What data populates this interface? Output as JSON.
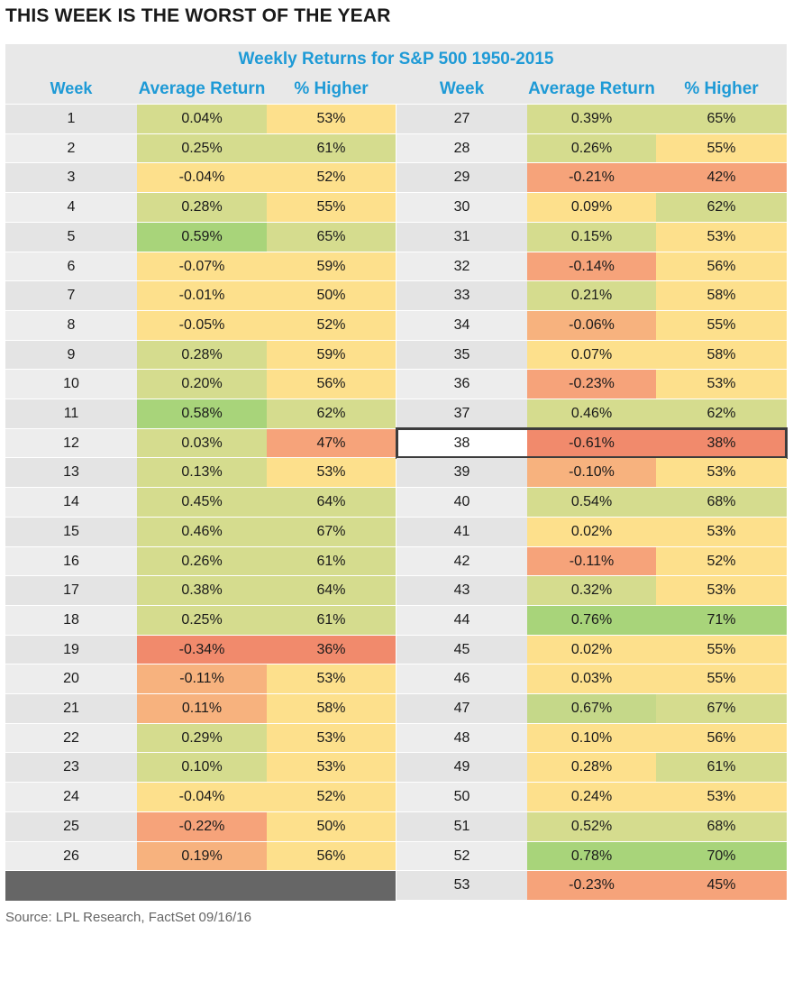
{
  "title": "THIS WEEK IS THE WORST OF THE YEAR",
  "subtitle": "Weekly Returns for S&P 500 1950-2015",
  "headers": {
    "week": "Week",
    "avg": "Average Return",
    "higher": "% Higher"
  },
  "source": "Source: LPL Research, FactSet   09/16/16",
  "highlight_week": "38",
  "colors": {
    "header_text": "#1e9ad6",
    "week_bg": "#e8e8e8",
    "scale_red": "#f18a6c",
    "scale_orange": "#f7b27e",
    "scale_yellow": "#fde08c",
    "scale_olive": "#d5dc8e",
    "scale_green": "#a8d47a",
    "empty_block": "#666666",
    "highlight_border": "#3c3c3c"
  },
  "chart_data": {
    "type": "table",
    "title": "THIS WEEK IS THE WORST OF THE YEAR",
    "subtitle": "Weekly Returns for S&P 500 1950-2015",
    "columns": [
      "Week",
      "Average Return",
      "% Higher"
    ],
    "rows": [
      [
        "1",
        "0.04%",
        "53%"
      ],
      [
        "2",
        "0.25%",
        "61%"
      ],
      [
        "3",
        "-0.04%",
        "52%"
      ],
      [
        "4",
        "0.28%",
        "55%"
      ],
      [
        "5",
        "0.59%",
        "65%"
      ],
      [
        "6",
        "-0.07%",
        "59%"
      ],
      [
        "7",
        "-0.01%",
        "50%"
      ],
      [
        "8",
        "-0.05%",
        "52%"
      ],
      [
        "9",
        "0.28%",
        "59%"
      ],
      [
        "10",
        "0.20%",
        "56%"
      ],
      [
        "11",
        "0.58%",
        "62%"
      ],
      [
        "12",
        "0.03%",
        "47%"
      ],
      [
        "13",
        "0.13%",
        "53%"
      ],
      [
        "14",
        "0.45%",
        "64%"
      ],
      [
        "15",
        "0.46%",
        "67%"
      ],
      [
        "16",
        "0.26%",
        "61%"
      ],
      [
        "17",
        "0.38%",
        "64%"
      ],
      [
        "18",
        "0.25%",
        "61%"
      ],
      [
        "19",
        "-0.34%",
        "36%"
      ],
      [
        "20",
        "-0.11%",
        "53%"
      ],
      [
        "21",
        "0.11%",
        "58%"
      ],
      [
        "22",
        "0.29%",
        "53%"
      ],
      [
        "23",
        "0.10%",
        "53%"
      ],
      [
        "24",
        "-0.04%",
        "52%"
      ],
      [
        "25",
        "-0.22%",
        "50%"
      ],
      [
        "26",
        "0.19%",
        "56%"
      ],
      [
        "27",
        "0.39%",
        "65%"
      ],
      [
        "28",
        "0.26%",
        "55%"
      ],
      [
        "29",
        "-0.21%",
        "42%"
      ],
      [
        "30",
        "0.09%",
        "62%"
      ],
      [
        "31",
        "0.15%",
        "53%"
      ],
      [
        "32",
        "-0.14%",
        "56%"
      ],
      [
        "33",
        "0.21%",
        "58%"
      ],
      [
        "34",
        "-0.06%",
        "55%"
      ],
      [
        "35",
        "0.07%",
        "58%"
      ],
      [
        "36",
        "-0.23%",
        "53%"
      ],
      [
        "37",
        "0.46%",
        "62%"
      ],
      [
        "38",
        "-0.61%",
        "38%"
      ],
      [
        "39",
        "-0.10%",
        "53%"
      ],
      [
        "40",
        "0.54%",
        "68%"
      ],
      [
        "41",
        "0.02%",
        "53%"
      ],
      [
        "42",
        "-0.11%",
        "52%"
      ],
      [
        "43",
        "0.32%",
        "53%"
      ],
      [
        "44",
        "0.76%",
        "71%"
      ],
      [
        "45",
        "0.02%",
        "55%"
      ],
      [
        "46",
        "0.03%",
        "55%"
      ],
      [
        "47",
        "0.67%",
        "67%"
      ],
      [
        "48",
        "0.10%",
        "56%"
      ],
      [
        "49",
        "0.28%",
        "61%"
      ],
      [
        "50",
        "0.24%",
        "53%"
      ],
      [
        "51",
        "0.52%",
        "68%"
      ],
      [
        "52",
        "0.78%",
        "70%"
      ],
      [
        "53",
        "-0.23%",
        "45%"
      ]
    ],
    "cell_colors": {
      "avg": [
        "olive",
        "olive",
        "yellow",
        "olive",
        "green",
        "yellow",
        "yellow",
        "yellow",
        "olive",
        "olive",
        "green",
        "olive",
        "olive",
        "olive",
        "olive",
        "olive",
        "olive",
        "olive",
        "red",
        "orange",
        "orange",
        "olive",
        "olive",
        "yellow",
        "red2",
        "orange",
        "olive",
        "olive",
        "red2",
        "yellow",
        "olive",
        "red2",
        "olive",
        "orange",
        "yellow",
        "red2",
        "olive",
        "red",
        "orange",
        "olive",
        "yellow",
        "red2",
        "olive",
        "green",
        "yellow",
        "yellow",
        "olive2",
        "yellow",
        "yellow",
        "yellow",
        "olive",
        "green",
        "red2"
      ],
      "higher": [
        "yellow",
        "olive",
        "yellow",
        "yellow",
        "olive",
        "yellow",
        "yellow",
        "yellow",
        "yellow",
        "yellow",
        "olive",
        "red2",
        "yellow",
        "olive",
        "olive",
        "olive",
        "olive",
        "olive",
        "red",
        "yellow",
        "yellow",
        "yellow",
        "yellow",
        "yellow",
        "yellow",
        "yellow",
        "olive",
        "yellow",
        "red2",
        "olive",
        "yellow",
        "yellow",
        "yellow",
        "yellow",
        "yellow",
        "yellow",
        "olive",
        "red",
        "yellow",
        "olive",
        "yellow",
        "yellow",
        "yellow",
        "green",
        "yellow",
        "yellow",
        "olive",
        "yellow",
        "olive",
        "yellow",
        "olive",
        "green",
        "red2"
      ]
    }
  }
}
